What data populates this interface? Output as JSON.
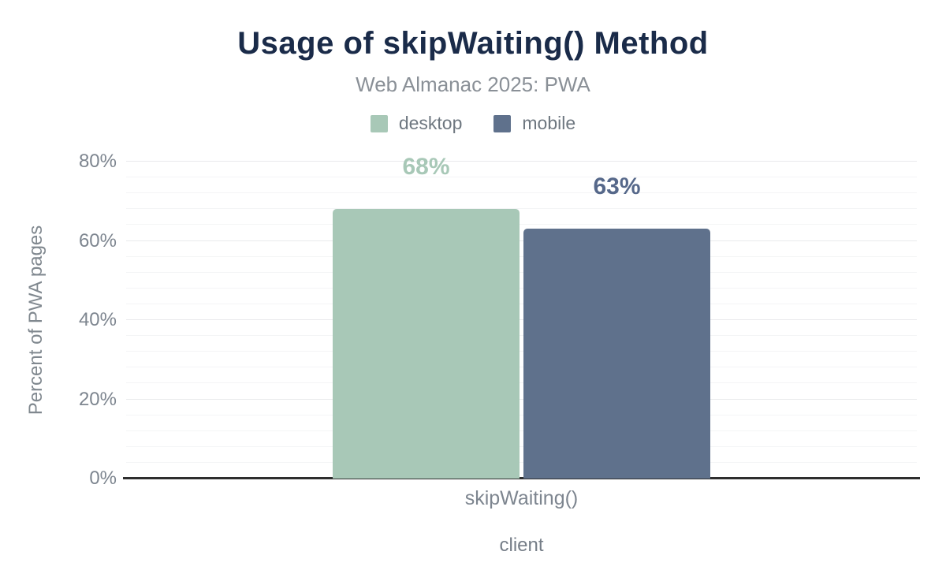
{
  "chart_data": {
    "type": "bar",
    "title": "Usage of skipWaiting() Method",
    "subtitle": "Web Almanac 2025: PWA",
    "categories": [
      "skipWaiting()"
    ],
    "series": [
      {
        "name": "desktop",
        "values": [
          68
        ],
        "value_label": "68%",
        "color": "#a8c8b7",
        "label_color": "#a8c8b7"
      },
      {
        "name": "mobile",
        "values": [
          63
        ],
        "value_label": "63%",
        "color": "#5f718c",
        "label_color": "#56688a"
      }
    ],
    "xlabel": "client",
    "ylabel": "Percent of PWA pages",
    "ylim": [
      0,
      80
    ],
    "yticks": [
      "0%",
      "20%",
      "40%",
      "60%",
      "80%"
    ],
    "ytick_major_step": 20,
    "ytick_minor_step": 4,
    "grid": true,
    "legend_position": "top",
    "colors": {
      "title": "#1a2b49",
      "subtitle": "#8a9097",
      "axis_text": "#7d858f",
      "axis_line": "#2e2e2e",
      "gridline_major": "#e9eaec",
      "gridline_minor": "#f4f5f6",
      "background": "#ffffff"
    }
  }
}
